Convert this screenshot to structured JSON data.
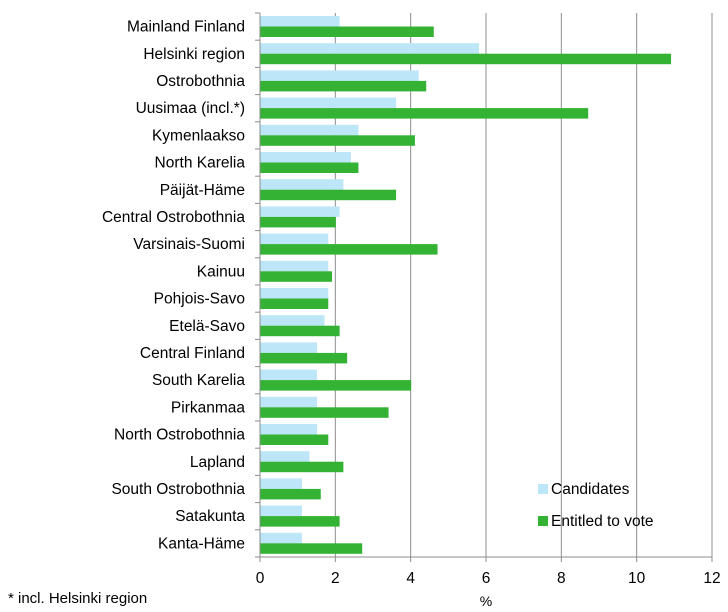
{
  "chart_data": {
    "type": "bar",
    "orientation": "horizontal",
    "categories": [
      "Mainland Finland",
      "Helsinki region",
      "Ostrobothnia",
      "Uusimaa (incl.*)",
      "Kymenlaakso",
      "North Karelia",
      "Päijät-Häme",
      "Central Ostrobothnia",
      "Varsinais-Suomi",
      "Kainuu",
      "Pohjois-Savo",
      "Etelä-Savo",
      "Central Finland",
      "South Karelia",
      "Pirkanmaa",
      "North Ostrobothnia",
      "Lapland",
      "South Ostrobothnia",
      "Satakunta",
      "Kanta-Häme"
    ],
    "series": [
      {
        "name": "Candidates",
        "color": "#bde6f8",
        "values": [
          2.1,
          5.8,
          4.2,
          3.6,
          2.6,
          2.4,
          2.2,
          2.1,
          1.8,
          1.8,
          1.8,
          1.7,
          1.5,
          1.5,
          1.5,
          1.5,
          1.3,
          1.1,
          1.1,
          1.1
        ]
      },
      {
        "name": "Entitled to vote",
        "color": "#33b233",
        "values": [
          4.6,
          10.9,
          4.4,
          8.7,
          4.1,
          2.6,
          3.6,
          2.0,
          4.7,
          1.9,
          1.8,
          2.1,
          2.3,
          4.0,
          3.4,
          1.8,
          2.2,
          1.6,
          2.1,
          2.7
        ]
      }
    ],
    "xlabel": "%",
    "xlim": [
      0,
      12
    ],
    "xticks": [
      "0",
      "2",
      "4",
      "6",
      "8",
      "10",
      "12"
    ],
    "grid": "vertical",
    "legend_position": "bottom-right",
    "gridline_color": "#8c8c8c"
  },
  "footnote": "* incl. Helsinki region"
}
